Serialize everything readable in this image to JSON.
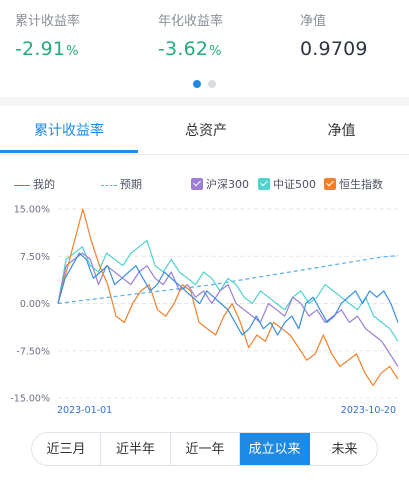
{
  "stats": [
    {
      "label": "累计收益率",
      "value": "-2.91",
      "unit": "%",
      "tone": "green"
    },
    {
      "label": "年化收益率",
      "value": "-3.62",
      "unit": "%",
      "tone": "green"
    },
    {
      "label": "净值",
      "value": "0.9709",
      "unit": "",
      "tone": "dark"
    }
  ],
  "pager": {
    "count": 2,
    "active_index": 0,
    "active_color": "#1e8ae6",
    "inactive_color": "#d8dbe0"
  },
  "tabs": [
    {
      "label": "累计收益率",
      "active": true
    },
    {
      "label": "总资产",
      "active": false
    },
    {
      "label": "净值",
      "active": false
    }
  ],
  "legend": [
    {
      "label": "我的",
      "style": "solid-line",
      "color": "#3a8fd9"
    },
    {
      "label": "预期",
      "style": "dashed-line",
      "color": "#58aee8"
    },
    {
      "label": "沪深300",
      "style": "checkbox",
      "color": "#9b7fd4"
    },
    {
      "label": "中证500",
      "style": "checkbox",
      "color": "#4fd3cb"
    },
    {
      "label": "恒生指数",
      "style": "checkbox",
      "color": "#f0802c"
    }
  ],
  "chart_data": {
    "type": "line",
    "x_range": [
      "2023-01-01",
      "2023-10-20"
    ],
    "xlabel_start": "2023-01-01",
    "xlabel_end": "2023-10-20",
    "y_ticks": [
      "15.00%",
      "7.50%",
      "0.00%",
      "-7.50%",
      "-15.00%"
    ],
    "ylim": [
      -15,
      15
    ],
    "grid": "horizontal-dashed",
    "series": [
      {
        "name": "我的",
        "color": "#3a8fd9",
        "style": "solid",
        "values": [
          0,
          4,
          6,
          8,
          7,
          4,
          5,
          6,
          3,
          4,
          5,
          6,
          4,
          2,
          3,
          5,
          4,
          3,
          2,
          1,
          0,
          2,
          1,
          0,
          -1,
          -3,
          -5,
          -4,
          -2,
          -4,
          -3,
          -5,
          -3,
          -2,
          -4,
          0,
          1,
          -1,
          -3,
          -2,
          0,
          1,
          2,
          0,
          2,
          1,
          2,
          0,
          -3
        ]
      },
      {
        "name": "预期",
        "color": "#58aee8",
        "style": "dashed",
        "values": [
          0,
          0.3,
          0.6,
          0.9,
          1.2,
          1.5,
          1.8,
          2.1,
          2.4,
          2.7,
          3,
          3.4,
          3.8,
          4.2,
          4.6,
          5,
          5.4,
          5.8,
          6.2,
          6.6,
          7,
          7.4,
          7.6
        ]
      },
      {
        "name": "沪深300",
        "color": "#9b7fd4",
        "style": "solid",
        "values": [
          0,
          6,
          7,
          8,
          7,
          3,
          6,
          5,
          4,
          3,
          5,
          6,
          4,
          3,
          5,
          2,
          3,
          1,
          2,
          0,
          2,
          3,
          0,
          -1,
          -2,
          -3,
          0,
          -1,
          -2,
          1,
          0,
          -2,
          -1,
          -3,
          -2,
          -1,
          -3,
          -2,
          -4,
          -5,
          -6,
          -8,
          -10
        ]
      },
      {
        "name": "中证500",
        "color": "#4fd3cb",
        "style": "solid",
        "values": [
          0,
          7,
          8,
          9,
          6,
          5,
          8,
          7,
          6,
          8,
          9,
          10,
          6,
          5,
          7,
          5,
          4,
          3,
          5,
          4,
          2,
          4,
          3,
          1,
          0,
          2,
          1,
          0,
          -1,
          1,
          2,
          0,
          1,
          3,
          2,
          1,
          0,
          -1,
          1,
          -2,
          -3,
          -4,
          -6
        ]
      },
      {
        "name": "恒生指数",
        "color": "#f0802c",
        "style": "solid",
        "values": [
          0,
          5,
          10,
          15,
          10,
          6,
          3,
          -2,
          -3,
          0,
          2,
          3,
          -1,
          -2,
          0,
          3,
          2,
          -3,
          -4,
          -5,
          -2,
          0,
          -3,
          -7,
          -5,
          -6,
          -3,
          -4,
          -5,
          -7,
          -9,
          -8,
          -5,
          -8,
          -10,
          -9,
          -8,
          -11,
          -13,
          -11,
          -10,
          -12
        ]
      }
    ]
  },
  "ranges": [
    {
      "label": "近三月",
      "active": false
    },
    {
      "label": "近半年",
      "active": false
    },
    {
      "label": "近一年",
      "active": false
    },
    {
      "label": "成立以来",
      "active": true
    },
    {
      "label": "未来",
      "active": false
    }
  ]
}
